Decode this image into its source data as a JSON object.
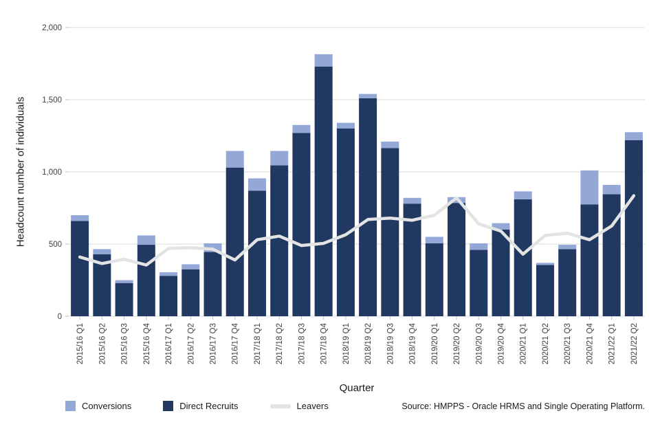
{
  "chart_data": {
    "type": "bar",
    "stacked": true,
    "title": "",
    "xlabel": "Quarter",
    "ylabel": "Headcount number of individuals",
    "ylim": [
      0,
      2000
    ],
    "yticks": [
      0,
      500,
      1000,
      1500,
      2000
    ],
    "ytick_labels": [
      "0",
      "500",
      "1,000",
      "1,500",
      "2,000"
    ],
    "grid": "horizontal",
    "legend_position": "bottom-left",
    "categories": [
      "2015/16 Q1",
      "2015/16 Q2",
      "2015/16 Q3",
      "2015/16 Q4",
      "2016/17 Q1",
      "2016/17 Q2",
      "2016/17 Q3",
      "2016/17 Q4",
      "2017/18 Q1",
      "2017/18 Q2",
      "2017/18 Q3",
      "2017/18 Q4",
      "2018/19 Q1",
      "2018/19 Q2",
      "2018/19 Q3",
      "2018/19 Q4",
      "2019/20 Q1",
      "2019/20 Q2",
      "2019/20 Q3",
      "2019/20 Q4",
      "2020/21 Q1",
      "2020/21 Q2",
      "2020/21 Q3",
      "2020/21 Q4",
      "2021/22 Q1",
      "2021/22 Q2"
    ],
    "series": [
      {
        "name": "Direct Recruits",
        "render": "bar",
        "color": "#213861",
        "values": [
          660,
          430,
          230,
          495,
          280,
          325,
          445,
          1030,
          870,
          1045,
          1270,
          1730,
          1300,
          1510,
          1165,
          780,
          505,
          785,
          460,
          600,
          810,
          355,
          465,
          775,
          845,
          1220
        ]
      },
      {
        "name": "Conversions",
        "render": "bar",
        "color": "#93a8d6",
        "values": [
          40,
          35,
          20,
          65,
          25,
          35,
          60,
          115,
          85,
          100,
          55,
          85,
          40,
          30,
          45,
          40,
          45,
          40,
          45,
          45,
          55,
          15,
          30,
          235,
          65,
          55
        ]
      },
      {
        "name": "Leavers",
        "render": "line",
        "color": "#e3e3e3",
        "values": [
          410,
          365,
          395,
          355,
          470,
          475,
          465,
          390,
          530,
          555,
          490,
          505,
          565,
          670,
          680,
          665,
          700,
          820,
          640,
          590,
          430,
          560,
          575,
          530,
          625,
          835
        ]
      }
    ],
    "legend": [
      {
        "label": "Conversions",
        "swatch": "square",
        "color": "#93a8d6"
      },
      {
        "label": "Direct Recruits",
        "swatch": "square",
        "color": "#213861"
      },
      {
        "label": "Leavers",
        "swatch": "line",
        "color": "#e3e3e3"
      }
    ],
    "colors": {
      "gridline": "#d9d9d9",
      "tick_text": "#3f3f3f"
    },
    "source": "Source: HMPPS - Oracle HRMS and Single Operating Platform."
  }
}
